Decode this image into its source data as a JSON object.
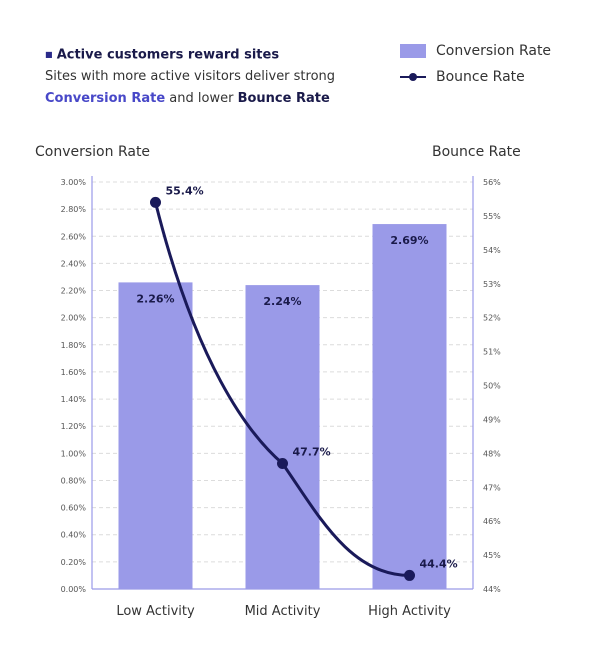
{
  "header": {
    "bullet": "■",
    "title": "Active customers reward sites",
    "line1": "Sites with more active visitors deliver strong",
    "line2_a": "Conversion Rate",
    "line2_b": " and lower ",
    "line2_c": "Bounce Rate"
  },
  "legend": {
    "bar_label": "Conversion Rate",
    "line_label": "Bounce Rate"
  },
  "colors": {
    "bar": "#9a9ae8",
    "line": "#1a1a5a",
    "accent": "#4848c8"
  },
  "chart_data": {
    "type": "bar",
    "categories": [
      "Low Activity",
      "Mid Activity",
      "High Activity"
    ],
    "series": [
      {
        "name": "Conversion Rate",
        "type": "bar",
        "axis": "left",
        "values": [
          2.26,
          2.24,
          2.69
        ],
        "labels": [
          "2.26%",
          "2.24%",
          "2.69%"
        ]
      },
      {
        "name": "Bounce Rate",
        "type": "line",
        "axis": "right",
        "values": [
          55.4,
          47.7,
          44.4
        ],
        "labels": [
          "55.4%",
          "47.7%",
          "44.4%"
        ]
      }
    ],
    "y_left": {
      "label": "Conversion Rate",
      "range": [
        0,
        3.0
      ],
      "ticks": [
        "0.00%",
        "0.20%",
        "0.40%",
        "0.60%",
        "0.80%",
        "1.00%",
        "1.20%",
        "1.40%",
        "1.60%",
        "1.80%",
        "2.00%",
        "2.20%",
        "2.40%",
        "2.60%",
        "2.80%",
        "3.00%"
      ]
    },
    "y_right": {
      "label": "Bounce Rate",
      "range": [
        44,
        56
      ],
      "ticks": [
        "44%",
        "45%",
        "46%",
        "47%",
        "48%",
        "49%",
        "50%",
        "51%",
        "52%",
        "53%",
        "54%",
        "55%",
        "56%"
      ]
    },
    "grid": true,
    "legend": "top-right"
  }
}
